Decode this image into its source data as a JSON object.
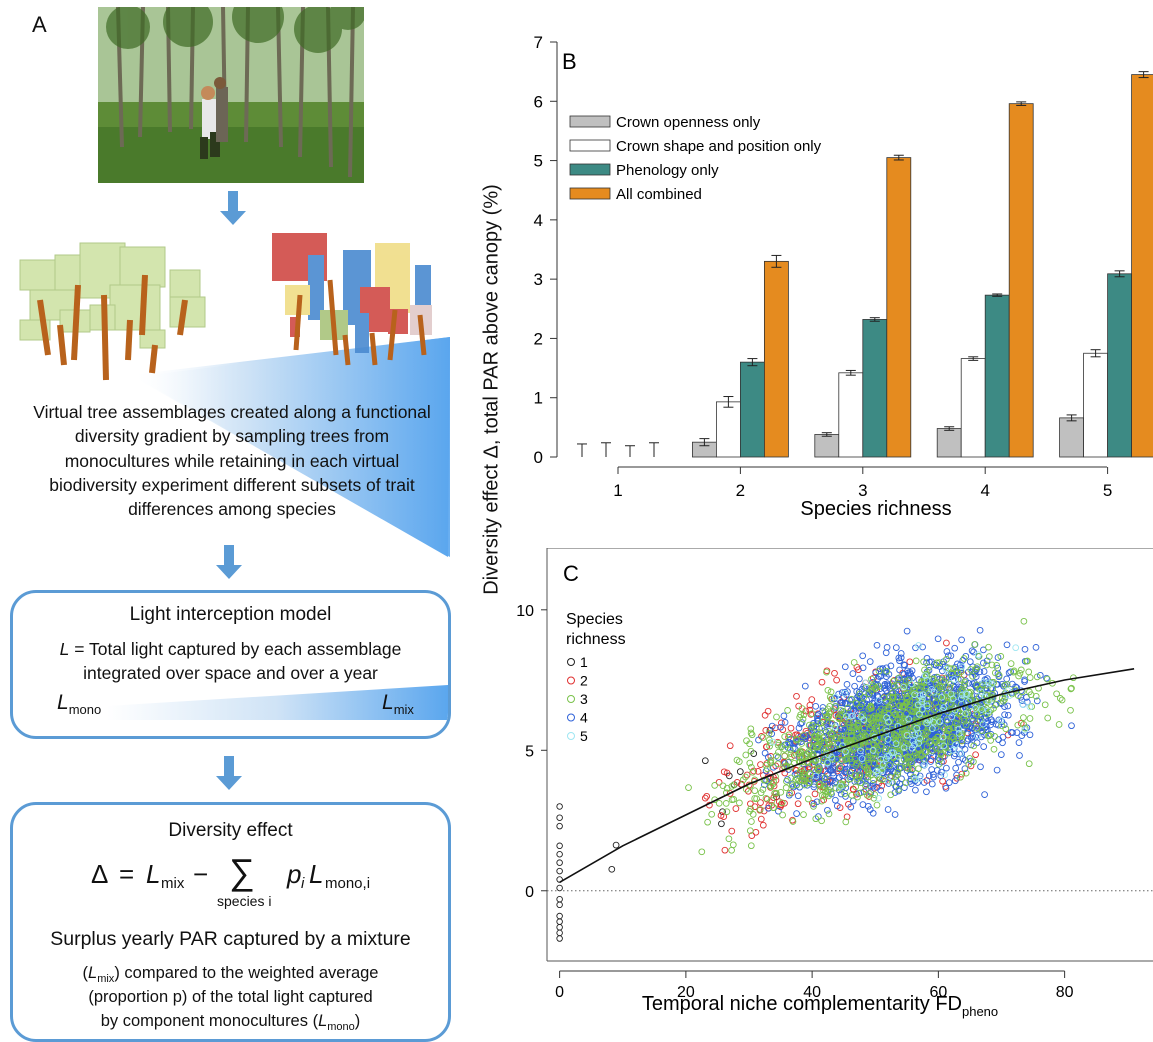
{
  "panel_a": {
    "letter": "A",
    "description_text": "Virtual tree assemblages created along a functional diversity gradient by sampling trees from monocultures while retaining in each virtual biodiversity experiment different subsets of trait differences among species",
    "light_model": {
      "title": "Light interception model",
      "line1_var": "L",
      "line1_rest": " = Total light captured by each assemblage",
      "line2": "integrated over space and over a year",
      "left_label_main": "L",
      "left_label_sub": "mono",
      "right_label_main": "L",
      "right_label_sub": "mix"
    },
    "diversity_effect": {
      "title": "Diversity effect",
      "eq_delta": "Δ",
      "eq_equals": "=",
      "eq_L": "L",
      "eq_mix": "mix",
      "eq_minus": "−",
      "eq_sum": "∑",
      "eq_sum_under": "species i",
      "eq_p": "p",
      "eq_i": "i",
      "eq_mono_i": "mono,i",
      "surplus": "Surplus yearly PAR captured by a mixture",
      "line_a_open": "(",
      "line_a_L": "L",
      "line_a_mix": "mix",
      "line_a_rest": ") compared to the weighted average",
      "line_b": "(proportion p) of the total light captured",
      "line_c_start": "by component monocultures (",
      "line_c_L": "L",
      "line_c_mono": "mono",
      "line_c_end": ")"
    }
  },
  "shared_ylabel": "Diversity effect Δ, total PAR above canopy (%)",
  "colors": {
    "crown_openness": "#c0c0c0",
    "crown_shape": "#ffffff",
    "phenology": "#3d8a84",
    "all_combined": "#e58b1f",
    "arrow_blue": "#5b9bd5",
    "sr1": "#222222",
    "sr2": "#e03030",
    "sr3": "#79c24a",
    "sr4": "#2f62d8",
    "sr5": "#9fe6f2"
  },
  "chart_data": [
    {
      "panel": "B",
      "type": "bar",
      "xlabel": "Species richness",
      "categories": [
        "1",
        "2",
        "3",
        "4",
        "5"
      ],
      "ylim": [
        0,
        7
      ],
      "yticks": [
        0,
        1,
        2,
        3,
        4,
        5,
        6,
        7
      ],
      "legend_position": "top-left",
      "series": [
        {
          "name": "Crown openness only",
          "values": [
            0,
            0.25,
            0.38,
            0.48,
            0.66
          ],
          "err": [
            0.22,
            0.06,
            0.03,
            0.03,
            0.05
          ]
        },
        {
          "name": "Crown shape and position only",
          "values": [
            0,
            0.93,
            1.42,
            1.66,
            1.75
          ],
          "err": [
            0.24,
            0.09,
            0.04,
            0.03,
            0.06
          ]
        },
        {
          "name": "Phenology only",
          "values": [
            0,
            1.6,
            2.32,
            2.73,
            3.09
          ],
          "err": [
            0.19,
            0.06,
            0.03,
            0.02,
            0.05
          ]
        },
        {
          "name": "All combined",
          "values": [
            0,
            3.3,
            5.05,
            5.96,
            6.45
          ],
          "err": [
            0.24,
            0.1,
            0.04,
            0.03,
            0.05
          ]
        }
      ]
    },
    {
      "panel": "C",
      "type": "scatter",
      "xlabel_main": "Temporal niche complementarity FD",
      "xlabel_sub": "pheno",
      "xlim": [
        -2,
        94
      ],
      "ylim": [
        -2.5,
        12.2
      ],
      "xticks": [
        0,
        20,
        40,
        60,
        80
      ],
      "yticks": [
        0,
        5,
        10
      ],
      "legend_title": [
        "Species",
        "richness"
      ],
      "legend_position": "top-left",
      "series_names": [
        "1",
        "2",
        "3",
        "4",
        "5"
      ],
      "series_counts": [
        16,
        380,
        900,
        1700,
        120
      ],
      "sr1_y_at_x0": [
        3.0,
        2.6,
        2.3,
        1.3,
        1.0,
        0.7,
        0.4,
        0.1,
        -0.3,
        -0.5,
        -0.9,
        -1.1,
        -1.3,
        -1.5,
        -1.7,
        1.6
      ],
      "fit_curve": [
        [
          0,
          0.3
        ],
        [
          10,
          1.6
        ],
        [
          20,
          2.7
        ],
        [
          30,
          3.8
        ],
        [
          40,
          4.7
        ],
        [
          50,
          5.5
        ],
        [
          60,
          6.3
        ],
        [
          70,
          7.0
        ],
        [
          80,
          7.5
        ],
        [
          91,
          7.9
        ]
      ]
    }
  ]
}
